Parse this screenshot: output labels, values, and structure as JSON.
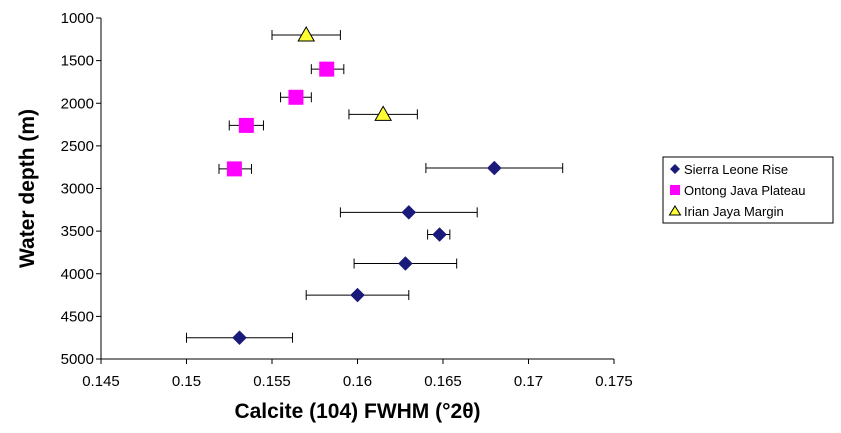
{
  "chart_data": {
    "type": "scatter",
    "xlabel": "Calcite (104) FWHM (°2θ)",
    "ylabel": "Water depth (m)",
    "xlim": [
      0.145,
      0.175
    ],
    "ylim": [
      1000,
      5000
    ],
    "y_inverted": true,
    "x_ticks": [
      "0.145",
      "0.15",
      "0.155",
      "0.16",
      "0.165",
      "0.17",
      "0.175"
    ],
    "y_ticks": [
      "1000",
      "1500",
      "2000",
      "2500",
      "3000",
      "3500",
      "4000",
      "4500",
      "5000"
    ],
    "grid": false,
    "legend_position": "right",
    "series": [
      {
        "name": "Sierra Leone Rise",
        "marker": "diamond",
        "color": "#1a1a7a",
        "points": [
          {
            "x": 0.168,
            "y": 2760,
            "xerr_low": 0.164,
            "xerr_high": 0.172
          },
          {
            "x": 0.163,
            "y": 3280,
            "xerr_low": 0.159,
            "xerr_high": 0.167
          },
          {
            "x": 0.1648,
            "y": 3540,
            "xerr_low": 0.1641,
            "xerr_high": 0.1654
          },
          {
            "x": 0.1628,
            "y": 3880,
            "xerr_low": 0.1598,
            "xerr_high": 0.1658
          },
          {
            "x": 0.16,
            "y": 4250,
            "xerr_low": 0.157,
            "xerr_high": 0.163
          },
          {
            "x": 0.1531,
            "y": 4750,
            "xerr_low": 0.15,
            "xerr_high": 0.1562
          }
        ]
      },
      {
        "name": "Ontong Java Plateau",
        "marker": "square",
        "color": "#ff00ff",
        "points": [
          {
            "x": 0.1582,
            "y": 1600,
            "xerr_low": 0.1573,
            "xerr_high": 0.1592
          },
          {
            "x": 0.1564,
            "y": 1930,
            "xerr_low": 0.1555,
            "xerr_high": 0.1573
          },
          {
            "x": 0.1535,
            "y": 2260,
            "xerr_low": 0.1525,
            "xerr_high": 0.1545
          },
          {
            "x": 0.1528,
            "y": 2770,
            "xerr_low": 0.1519,
            "xerr_high": 0.1538
          }
        ]
      },
      {
        "name": "Irian Jaya Margin",
        "marker": "triangle",
        "color": "#ffff33",
        "points": [
          {
            "x": 0.157,
            "y": 1200,
            "xerr_low": 0.155,
            "xerr_high": 0.159
          },
          {
            "x": 0.1615,
            "y": 2130,
            "xerr_low": 0.1595,
            "xerr_high": 0.1635
          }
        ]
      }
    ]
  }
}
